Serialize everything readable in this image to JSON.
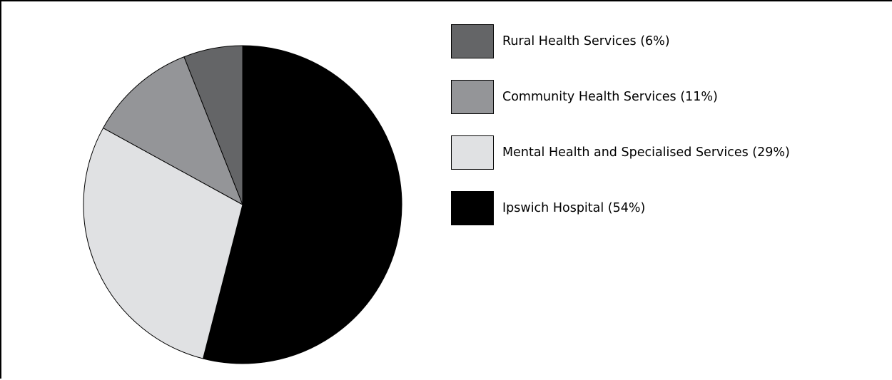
{
  "chart_data": {
    "type": "pie",
    "title": "",
    "slices": [
      {
        "label": "Ipswich Hospital (54%)",
        "value": 54,
        "color": "#000000"
      },
      {
        "label": "Mental Health and Specialised Services (29%)",
        "value": 29,
        "color": "#e0e1e3"
      },
      {
        "label": "Community Health Services (11%)",
        "value": 11,
        "color": "#949598"
      },
      {
        "label": "Rural Health Services (6%)",
        "value": 6,
        "color": "#646567"
      }
    ],
    "legend": {
      "position": "right",
      "order": [
        "Rural Health Services (6%)",
        "Community Health Services (11%)",
        "Mental Health and Specialised Services (29%)",
        "Ipswich Hospital (54%)"
      ]
    },
    "start_angle": "12 o'clock",
    "direction": "clockwise"
  }
}
